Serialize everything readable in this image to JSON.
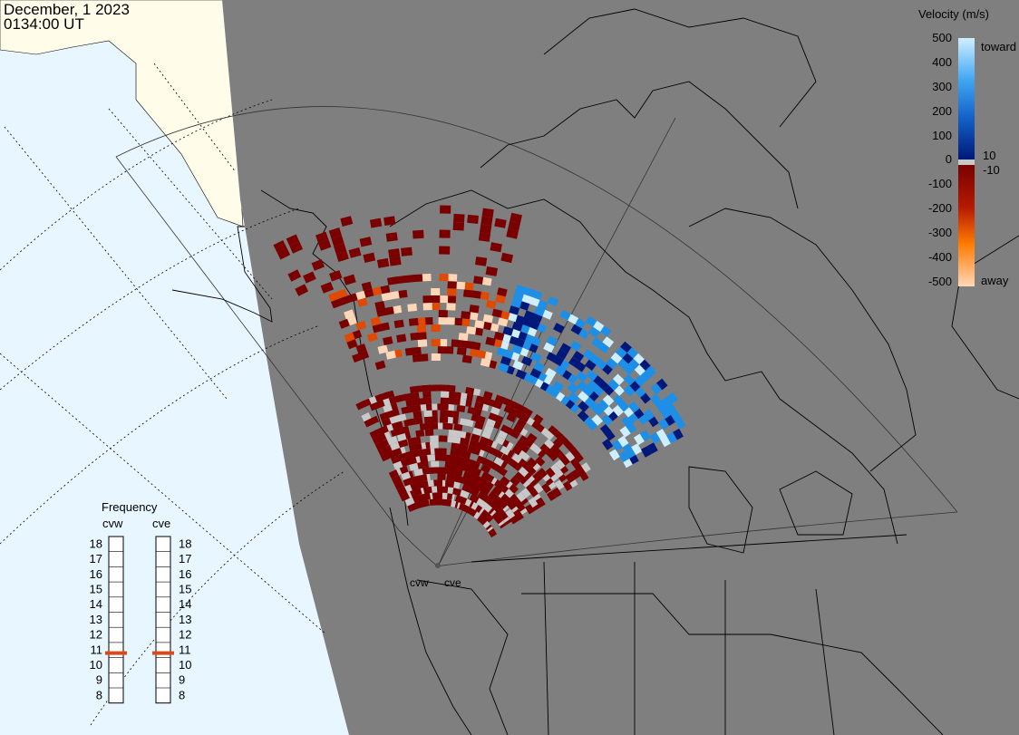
{
  "header": {
    "date": "December, 1 2023",
    "time": "0134:00 UT"
  },
  "colorbar": {
    "title": "Velocity (m/s)",
    "ticks": [
      "500",
      "400",
      "300",
      "200",
      "100",
      "10",
      "0",
      "-10",
      "-100",
      "-200",
      "-300",
      "-400",
      "-500"
    ],
    "toward_label": "toward",
    "away_label": "away",
    "colors": {
      "toward_light": "#cfeeff",
      "toward_mid": "#1e8fe6",
      "toward_dark": "#00187a",
      "away_dark": "#7a0000",
      "away_mid": "#e04a00",
      "away_light": "#ffd7b8",
      "ground_scatter": "#c8c8c8"
    }
  },
  "frequency_panel": {
    "title": "Frequency",
    "radars": [
      "cvw",
      "cve"
    ],
    "scale": [
      "18",
      "17",
      "16",
      "15",
      "14",
      "13",
      "12",
      "11",
      "10",
      "9",
      "8"
    ],
    "current_mhz": {
      "cvw": 10.8,
      "cve": 10.8
    },
    "marker_color": "#d94a1a"
  },
  "map": {
    "radar_labels": [
      "cvw",
      "cve"
    ],
    "colors": {
      "ocean": "#e8f6ff",
      "land_daylight": "#fffcea",
      "night": "#7f7f7f",
      "coastline": "#000000"
    }
  }
}
